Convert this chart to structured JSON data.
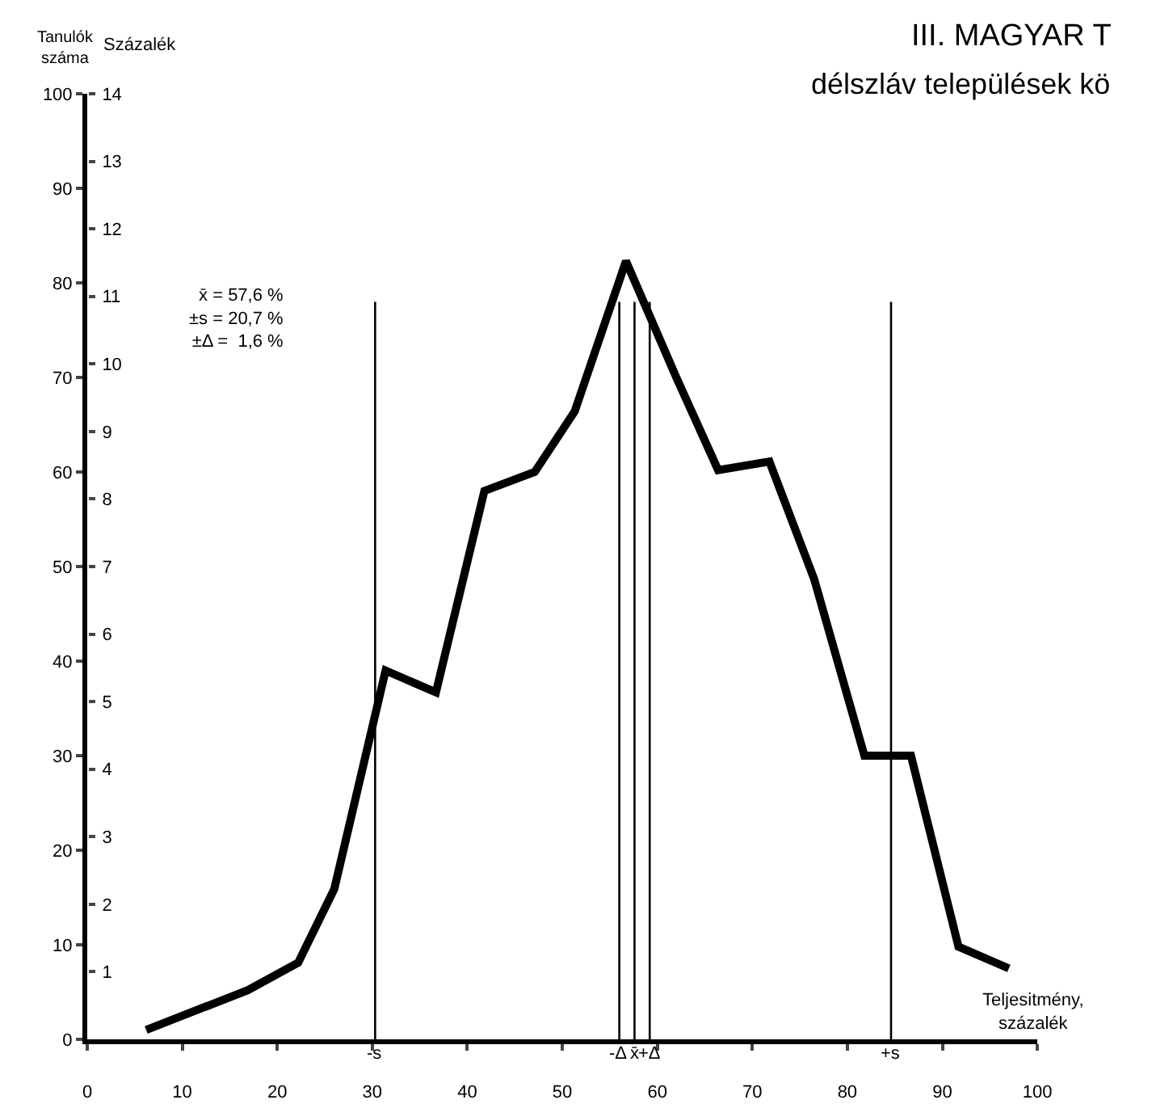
{
  "chart_data": {
    "type": "line",
    "title": "III. MAGYAR T",
    "subtitle": "délszláv települések kö",
    "xlabel": "Teljesitmény, százalék",
    "ylabel": "Tanulók száma",
    "y2label": "Százalék",
    "x": [
      6.2,
      16.9,
      22.2,
      26,
      31.4,
      36.7,
      41.8,
      47.1,
      51.3,
      56.7,
      62,
      66.4,
      71.8,
      76.5,
      81.8,
      86.7,
      91.7,
      97
    ],
    "series": [
      {
        "color": "#000000",
        "values": [
          1,
          5.2,
          8.1,
          15.9,
          39,
          36.7,
          58,
          60,
          66.4,
          82.3,
          70,
          60.2,
          61.1,
          48.7,
          30,
          30,
          9.8,
          7.5
        ]
      }
    ],
    "xlim": [
      0,
      100
    ],
    "xticks": [
      0,
      10,
      20,
      30,
      40,
      50,
      60,
      70,
      80,
      90,
      100
    ],
    "ylim": [
      0,
      100
    ],
    "yticks": [
      0,
      10,
      20,
      30,
      40,
      50,
      60,
      70,
      80,
      90,
      100
    ],
    "y2lim": [
      0,
      14
    ],
    "y2ticks": [
      1,
      2,
      3,
      4,
      5,
      6,
      7,
      8,
      9,
      10,
      11,
      12,
      13,
      14
    ],
    "ref_lines": [
      {
        "axis": "x",
        "value": 30.3,
        "label": "-s"
      },
      {
        "axis": "x",
        "value": 56,
        "label": "-Δ"
      },
      {
        "axis": "x",
        "value": 57.6,
        "label": "x̄"
      },
      {
        "axis": "x",
        "value": 59.2,
        "label": "+Δ"
      },
      {
        "axis": "x",
        "value": 84.6,
        "label": "+s"
      }
    ],
    "annotations": [
      "x̄ = 57,6 %",
      "±s = 20,7 %",
      "±Δ =  1,6 %"
    ],
    "grid": false,
    "marker": "none",
    "line_style": "solid"
  }
}
